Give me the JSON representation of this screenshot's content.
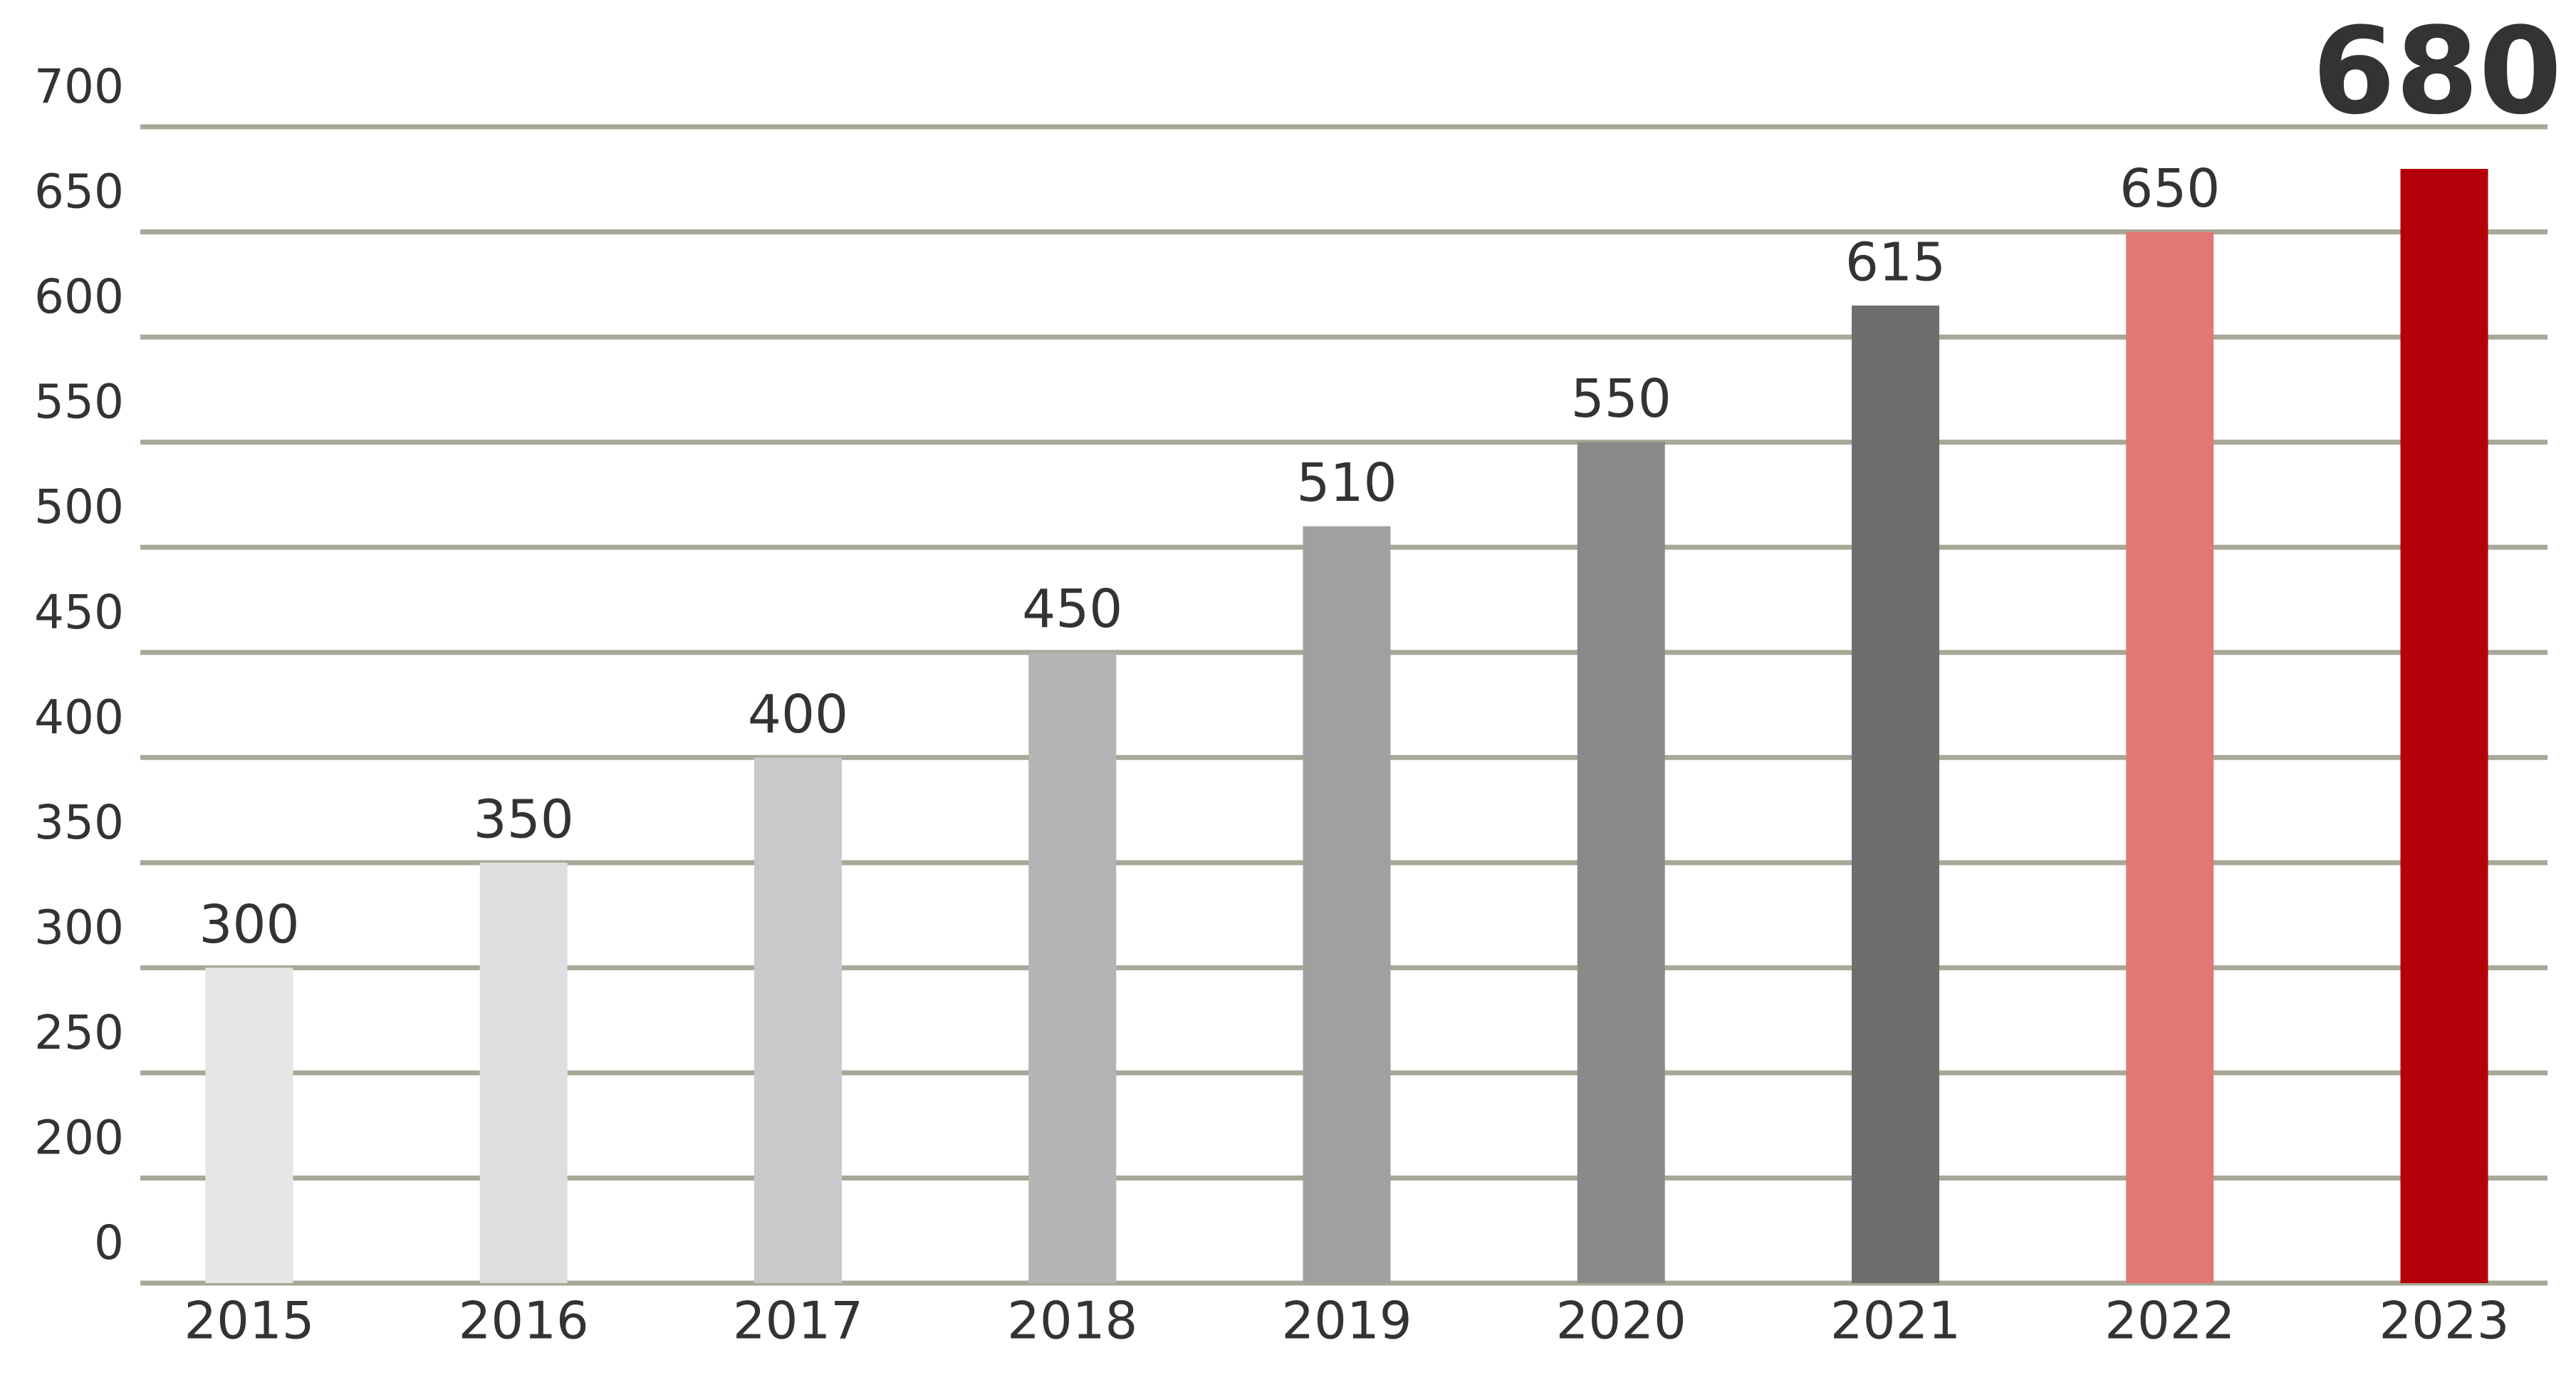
{
  "chart_data": {
    "type": "bar",
    "categories": [
      "2015",
      "2016",
      "2017",
      "2018",
      "2019",
      "2020",
      "2021",
      "2022",
      "2023"
    ],
    "values": [
      300,
      350,
      400,
      450,
      510,
      550,
      615,
      650,
      680
    ],
    "colors": [
      "#e6e6e6",
      "#dddedf",
      "#c9c9cb",
      "#b4b4b4",
      "#a0a0a0",
      "#8a8a8a",
      "#6e6e6e",
      "#e17876",
      "#b5000a"
    ],
    "ylim": [
      0,
      700
    ],
    "yticks": [
      0,
      200,
      250,
      300,
      350,
      400,
      450,
      500,
      550,
      600,
      650,
      700
    ],
    "grid": true
  }
}
